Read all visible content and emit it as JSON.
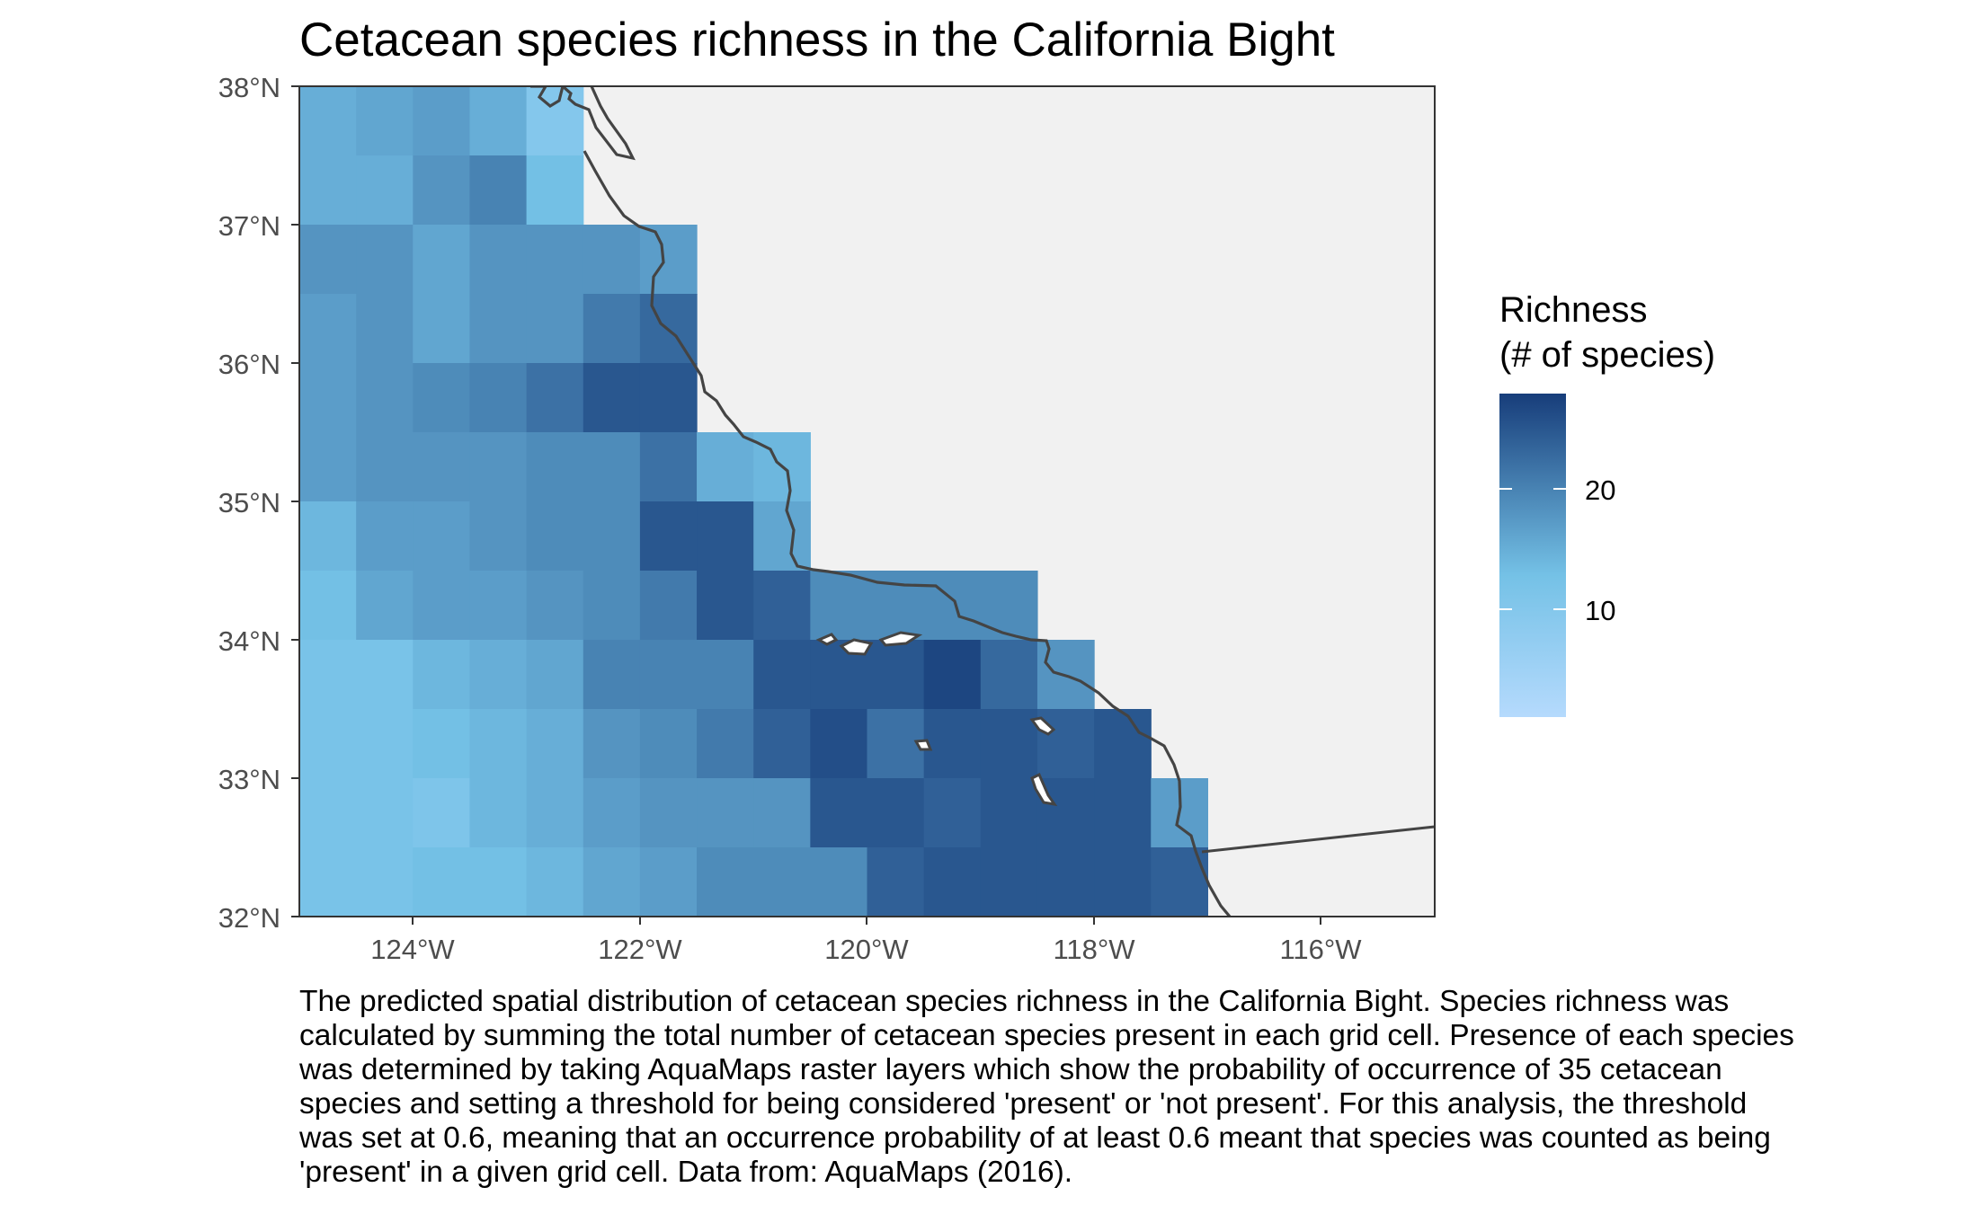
{
  "title": "Cetacean species richness in the California Bight",
  "legend": {
    "title_line1": "Richness",
    "title_line2": "(# of species)",
    "breaks": [
      "20",
      "10"
    ],
    "break_values": [
      20,
      10
    ],
    "range": [
      1,
      28
    ],
    "color_low": "#b5dafd",
    "color_mid": "#74c1e6",
    "color_high": "#173d7a"
  },
  "axes": {
    "x_labels": [
      "124°W",
      "122°W",
      "120°W",
      "118°W",
      "116°W"
    ],
    "x_values": [
      -124,
      -122,
      -120,
      -118,
      -116
    ],
    "y_labels": [
      "38°N",
      "37°N",
      "36°N",
      "35°N",
      "34°N",
      "33°N",
      "32°N"
    ],
    "y_values": [
      38,
      37,
      36,
      35,
      34,
      33,
      32
    ],
    "xlim": [
      -125,
      -115
    ],
    "ylim": [
      32,
      38
    ]
  },
  "colors": {
    "land": "#f1f1f1",
    "coastline": "#444444",
    "island": "#ffffff"
  },
  "caption": [
    "The predicted spatial distribution of cetacean species richness  in the California Bight. Species richness was",
    "calculated by summing the total number of cetacean species present in each grid cell. Presence of each species",
    "was determined by taking AquaMaps raster layers which show the probability of occurrence of 35 cetacean",
    "species and setting a threshold for being considered 'present' or 'not present'. For this analysis, the threshold",
    "was set at 0.6, meaning that an occurrence probability of at least 0.6 meant that species was counted as being",
    "'present' in a given grid cell. Data from: AquaMaps (2016)."
  ],
  "chart_data": {
    "type": "heatmap",
    "cell_size_deg": 0.5,
    "lon_start": -125,
    "lat_top": 38,
    "richness_grid": [
      [
        15,
        16,
        17,
        15,
        10,
        null,
        null,
        null,
        null,
        null,
        null,
        null,
        null,
        null,
        null,
        null,
        null,
        null,
        null,
        null
      ],
      [
        15,
        15,
        18,
        20,
        13,
        null,
        null,
        null,
        null,
        null,
        null,
        null,
        null,
        null,
        null,
        null,
        null,
        null,
        null,
        null
      ],
      [
        18,
        18,
        16,
        18,
        18,
        18,
        17,
        null,
        null,
        null,
        null,
        null,
        null,
        null,
        null,
        null,
        null,
        null,
        null,
        null
      ],
      [
        17,
        18,
        16,
        18,
        18,
        21,
        23,
        null,
        null,
        null,
        null,
        null,
        null,
        null,
        null,
        null,
        null,
        null,
        null,
        null
      ],
      [
        17,
        18,
        19,
        20,
        22,
        25,
        25,
        null,
        null,
        null,
        null,
        null,
        null,
        null,
        null,
        null,
        null,
        null,
        null,
        null
      ],
      [
        17,
        18,
        18,
        18,
        19,
        19,
        22,
        15,
        14,
        null,
        null,
        null,
        null,
        null,
        null,
        null,
        null,
        null,
        null,
        null
      ],
      [
        14,
        17,
        17,
        18,
        19,
        19,
        25,
        25,
        16,
        null,
        null,
        null,
        null,
        null,
        null,
        null,
        null,
        null,
        null,
        null
      ],
      [
        13,
        16,
        17,
        17,
        18,
        19,
        21,
        25,
        24,
        19,
        19,
        19,
        19,
        null,
        null,
        null,
        null,
        null,
        null,
        null
      ],
      [
        12,
        12,
        14,
        15,
        16,
        20,
        20,
        20,
        25,
        25,
        25,
        27,
        23,
        18,
        null,
        null,
        null,
        null,
        null,
        null
      ],
      [
        12,
        12,
        13,
        14,
        15,
        18,
        19,
        21,
        24,
        26,
        22,
        25,
        25,
        24,
        25,
        null,
        null,
        null,
        null,
        null
      ],
      [
        12,
        12,
        11,
        14,
        15,
        17,
        18,
        18,
        18,
        25,
        25,
        24,
        25,
        25,
        25,
        17,
        null,
        null,
        null,
        null
      ],
      [
        12,
        12,
        13,
        13,
        14,
        16,
        17,
        19,
        19,
        19,
        24,
        25,
        25,
        25,
        25,
        24,
        null,
        null,
        null,
        null
      ]
    ]
  }
}
